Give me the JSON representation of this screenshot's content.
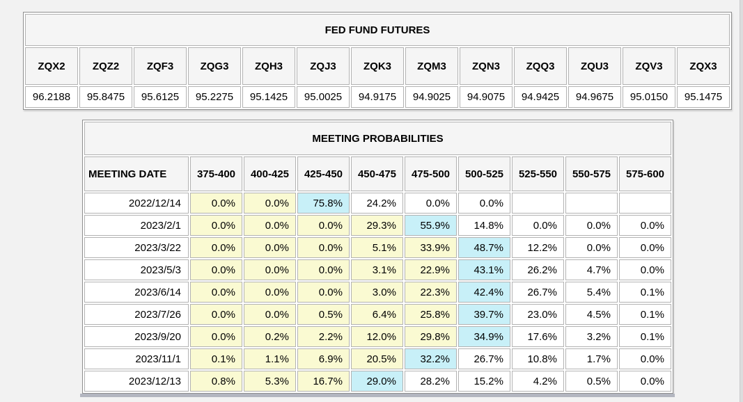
{
  "futures_table": {
    "title": "FED FUND FUTURES",
    "columns": [
      "ZQX2",
      "ZQZ2",
      "ZQF3",
      "ZQG3",
      "ZQH3",
      "ZQJ3",
      "ZQK3",
      "ZQM3",
      "ZQN3",
      "ZQQ3",
      "ZQU3",
      "ZQV3",
      "ZQX3"
    ],
    "values": [
      "96.2188",
      "95.8475",
      "95.6125",
      "95.2275",
      "95.1425",
      "95.0025",
      "94.9175",
      "94.9025",
      "94.9075",
      "94.9425",
      "94.9675",
      "95.0150",
      "95.1475"
    ]
  },
  "probabilities_table": {
    "title": "MEETING PROBABILITIES",
    "date_header": "MEETING DATE",
    "rate_headers": [
      "375-400",
      "400-425",
      "425-450",
      "450-475",
      "475-500",
      "500-525",
      "525-550",
      "550-575",
      "575-600"
    ],
    "highlight_colors": {
      "below_mode_yellow": "#fafad2",
      "mode_blue": "#c8f0f8",
      "above_mode_white": "#ffffff"
    },
    "rows": [
      {
        "date": "2022/12/14",
        "values": [
          "0.0%",
          "0.0%",
          "75.8%",
          "24.2%",
          "0.0%",
          "0.0%",
          "",
          "",
          ""
        ],
        "bg": [
          "y",
          "y",
          "b",
          "w",
          "w",
          "w",
          "e",
          "e",
          "e"
        ]
      },
      {
        "date": "2023/2/1",
        "values": [
          "0.0%",
          "0.0%",
          "0.0%",
          "29.3%",
          "55.9%",
          "14.8%",
          "0.0%",
          "0.0%",
          "0.0%"
        ],
        "bg": [
          "y",
          "y",
          "y",
          "y",
          "b",
          "w",
          "w",
          "w",
          "w"
        ]
      },
      {
        "date": "2023/3/22",
        "values": [
          "0.0%",
          "0.0%",
          "0.0%",
          "5.1%",
          "33.9%",
          "48.7%",
          "12.2%",
          "0.0%",
          "0.0%"
        ],
        "bg": [
          "y",
          "y",
          "y",
          "y",
          "y",
          "b",
          "w",
          "w",
          "w"
        ]
      },
      {
        "date": "2023/5/3",
        "values": [
          "0.0%",
          "0.0%",
          "0.0%",
          "3.1%",
          "22.9%",
          "43.1%",
          "26.2%",
          "4.7%",
          "0.0%"
        ],
        "bg": [
          "y",
          "y",
          "y",
          "y",
          "y",
          "b",
          "w",
          "w",
          "w"
        ]
      },
      {
        "date": "2023/6/14",
        "values": [
          "0.0%",
          "0.0%",
          "0.0%",
          "3.0%",
          "22.3%",
          "42.4%",
          "26.7%",
          "5.4%",
          "0.1%"
        ],
        "bg": [
          "y",
          "y",
          "y",
          "y",
          "y",
          "b",
          "w",
          "w",
          "w"
        ]
      },
      {
        "date": "2023/7/26",
        "values": [
          "0.0%",
          "0.0%",
          "0.5%",
          "6.4%",
          "25.8%",
          "39.7%",
          "23.0%",
          "4.5%",
          "0.1%"
        ],
        "bg": [
          "y",
          "y",
          "y",
          "y",
          "y",
          "b",
          "w",
          "w",
          "w"
        ]
      },
      {
        "date": "2023/9/20",
        "values": [
          "0.0%",
          "0.2%",
          "2.2%",
          "12.0%",
          "29.8%",
          "34.9%",
          "17.6%",
          "3.2%",
          "0.1%"
        ],
        "bg": [
          "y",
          "y",
          "y",
          "y",
          "y",
          "b",
          "w",
          "w",
          "w"
        ]
      },
      {
        "date": "2023/11/1",
        "values": [
          "0.1%",
          "1.1%",
          "6.9%",
          "20.5%",
          "32.2%",
          "26.7%",
          "10.8%",
          "1.7%",
          "0.0%"
        ],
        "bg": [
          "y",
          "y",
          "y",
          "y",
          "b",
          "w",
          "w",
          "w",
          "w"
        ]
      },
      {
        "date": "2023/12/13",
        "values": [
          "0.8%",
          "5.3%",
          "16.7%",
          "29.0%",
          "28.2%",
          "15.2%",
          "4.2%",
          "0.5%",
          "0.0%"
        ],
        "bg": [
          "y",
          "y",
          "y",
          "b",
          "w",
          "w",
          "w",
          "w",
          "w"
        ]
      }
    ]
  }
}
